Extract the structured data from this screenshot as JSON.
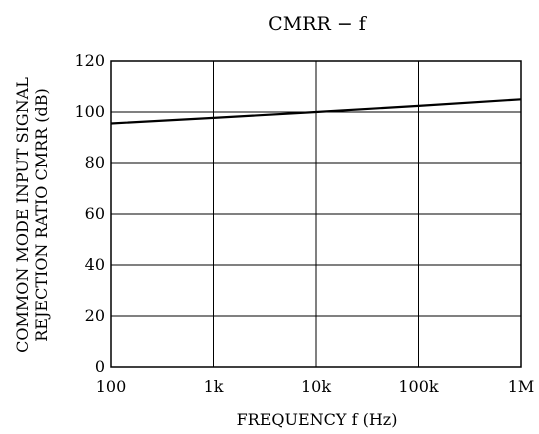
{
  "chart_data": {
    "type": "line",
    "title": "CMRR − f",
    "xlabel": "FREQUENCY f (Hz)",
    "ylabel_line1": "COMMON MODE INPUT SIGNAL",
    "ylabel_line2": "REJECTION RATIO CMRR (dB)",
    "x_scale": "log",
    "xlim": [
      100,
      1000000
    ],
    "ylim": [
      0,
      120
    ],
    "grid": true,
    "x_ticks": [
      {
        "value": 100,
        "label": "100"
      },
      {
        "value": 1000,
        "label": "1k"
      },
      {
        "value": 10000,
        "label": "10k"
      },
      {
        "value": 100000,
        "label": "100k"
      },
      {
        "value": 1000000,
        "label": "1M"
      }
    ],
    "y_ticks": [
      {
        "value": 0,
        "label": "0"
      },
      {
        "value": 20,
        "label": "20"
      },
      {
        "value": 40,
        "label": "40"
      },
      {
        "value": 60,
        "label": "60"
      },
      {
        "value": 80,
        "label": "80"
      },
      {
        "value": 100,
        "label": "100"
      },
      {
        "value": 120,
        "label": "120"
      }
    ],
    "series": [
      {
        "color": "#000000",
        "x": [
          100,
          1000,
          10000,
          100000,
          1000000
        ],
        "y": [
          95.5,
          97.7,
          100,
          102.4,
          105
        ]
      }
    ]
  }
}
